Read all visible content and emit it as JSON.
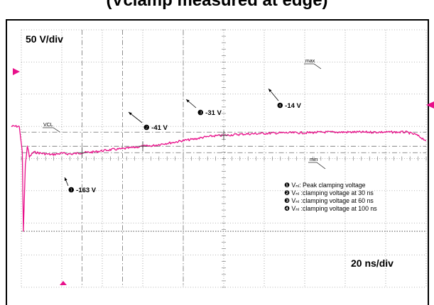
{
  "figure": {
    "title": "(Vclamp measured at edge)"
  },
  "chart_data": {
    "type": "line",
    "vertical_scale": "50 V/div",
    "horizontal_scale": "20 ns/div",
    "xlim": [
      0,
      200
    ],
    "ylim": [
      -250,
      150
    ],
    "grid": true,
    "level_markers": {
      "max": "max",
      "min": "min",
      "vcl": "VCL"
    },
    "series": [
      {
        "x": [
          -5,
          -1,
          0.5,
          1,
          2,
          3,
          4,
          6,
          10,
          15,
          20,
          25,
          30,
          35,
          40,
          45,
          50,
          55,
          60,
          65,
          70,
          75,
          80,
          85,
          90,
          95,
          100,
          110,
          120,
          130,
          140,
          150,
          160,
          170,
          180,
          190,
          195,
          200
        ],
        "y": [
          0,
          0,
          -40,
          -163,
          -60,
          -30,
          -48,
          -40,
          -42,
          -44,
          -42,
          -43,
          -41,
          -40,
          -38,
          -36,
          -35,
          -33,
          -31,
          -30,
          -27,
          -25,
          -22,
          -20,
          -17,
          -15,
          -14,
          -12,
          -11,
          -10,
          -10,
          -9,
          -9,
          -9,
          -9,
          -9,
          -13,
          -22
        ]
      }
    ],
    "annotations": [
      {
        "marker": "❶",
        "text": "-163 V",
        "x": 1,
        "y": -163
      },
      {
        "marker": "❷",
        "text": "-41 V",
        "x": 30,
        "y": -41
      },
      {
        "marker": "❸",
        "text": "-31 V",
        "x": 60,
        "y": -31
      },
      {
        "marker": "❹",
        "text": "-14 V",
        "x": 100,
        "y": -14
      }
    ],
    "legend": {
      "placement": "lower-right",
      "items": [
        {
          "marker": "❶",
          "text": "Vₙₗ: Peak clamping  voltage"
        },
        {
          "marker": "❷",
          "text": "Vₙₗ :clamping voltage at 30 ns"
        },
        {
          "marker": "❸",
          "text": "Vₙₗ :clamping voltage at 60 ns"
        },
        {
          "marker": "❹",
          "text": "Vₙₗ :clamping voltage at 100 ns"
        }
      ]
    }
  },
  "colors": {
    "trace": "#e8108a",
    "grid": "#6e6e6e",
    "cursor": "#808080"
  }
}
